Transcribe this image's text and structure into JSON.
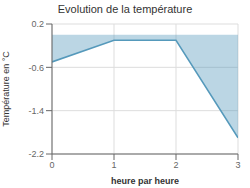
{
  "chart_data": {
    "type": "area",
    "title": "Evolution de la température",
    "x": [
      0,
      1,
      2,
      3
    ],
    "values": [
      -0.5,
      -0.1,
      -0.1,
      -1.9
    ],
    "xlabel": "heure par heure",
    "ylabel": "Température en °C",
    "xlim": [
      0,
      3
    ],
    "ylim": [
      -2.2,
      0.2
    ],
    "xticks": [
      0,
      1,
      2,
      3
    ],
    "yticks": [
      0.2,
      -0.6,
      -1.4,
      -2.2
    ],
    "grid": true,
    "color": "#5599bb"
  }
}
